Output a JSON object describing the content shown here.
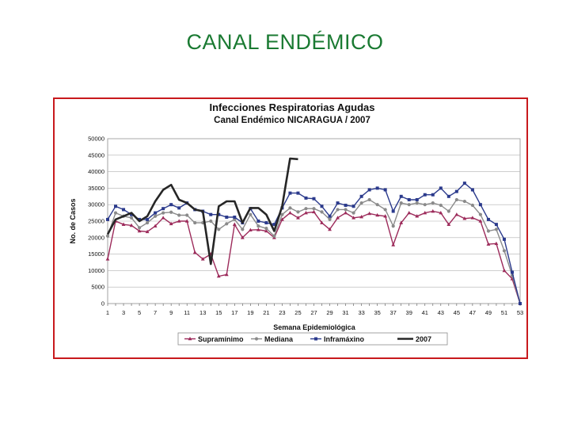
{
  "slide": {
    "title": "CANAL ENDÉMICO"
  },
  "chart_data": {
    "type": "line",
    "title": "Infecciones Respiratorias Agudas",
    "subtitle": "Canal Endémico NICARAGUA / 2007",
    "xlabel": "Semana Epidemiológica",
    "ylabel": "No. de Casos",
    "ylim": [
      0,
      50000
    ],
    "yticks": [
      "0",
      "5000",
      "10000",
      "15000",
      "20000",
      "25000",
      "30000",
      "35000",
      "40000",
      "45000",
      "50000"
    ],
    "xticks": [
      "1",
      "3",
      "5",
      "7",
      "9",
      "11",
      "13",
      "15",
      "17",
      "19",
      "21",
      "23",
      "25",
      "27",
      "29",
      "31",
      "33",
      "35",
      "37",
      "39",
      "41",
      "43",
      "45",
      "47",
      "49",
      "51",
      "53"
    ],
    "grid": true,
    "legend_position": "bottom",
    "series": [
      {
        "name": "Supramínimo",
        "color": "#9c2a5a",
        "marker": "triangle",
        "x": [
          1,
          2,
          3,
          4,
          5,
          6,
          7,
          8,
          9,
          10,
          11,
          12,
          13,
          14,
          15,
          16,
          17,
          18,
          19,
          20,
          21,
          22,
          23,
          24,
          25,
          26,
          27,
          28,
          29,
          30,
          31,
          32,
          33,
          34,
          35,
          36,
          37,
          38,
          39,
          40,
          41,
          42,
          43,
          44,
          45,
          46,
          47,
          48,
          49,
          50,
          51,
          52,
          53
        ],
        "values": [
          13500,
          25000,
          24000,
          23700,
          22000,
          21800,
          23500,
          26000,
          24200,
          25000,
          25000,
          15500,
          13500,
          15000,
          8300,
          8800,
          24000,
          20000,
          22300,
          22400,
          22000,
          20000,
          25500,
          27500,
          26000,
          27500,
          27800,
          24500,
          22500,
          26000,
          27500,
          26000,
          26300,
          27300,
          26800,
          26500,
          17800,
          24500,
          27500,
          26500,
          27500,
          28000,
          27500,
          24000,
          27000,
          25800,
          26000,
          25000,
          18000,
          18200,
          10000,
          7500,
          0
        ]
      },
      {
        "name": "Mediana",
        "color": "#8a8a8a",
        "marker": "circle",
        "x": [
          1,
          2,
          3,
          4,
          5,
          6,
          7,
          8,
          9,
          10,
          11,
          12,
          13,
          14,
          15,
          16,
          17,
          18,
          19,
          20,
          21,
          22,
          23,
          24,
          25,
          26,
          27,
          28,
          29,
          30,
          31,
          32,
          33,
          34,
          35,
          36,
          37,
          38,
          39,
          40,
          41,
          42,
          43,
          44,
          45,
          46,
          47,
          48,
          49,
          50,
          51,
          52,
          53
        ],
        "values": [
          20500,
          27500,
          26500,
          26000,
          23000,
          24500,
          26500,
          27500,
          27700,
          26800,
          26800,
          24500,
          24500,
          25000,
          22500,
          24200,
          25500,
          22500,
          27000,
          23500,
          22800,
          20500,
          27000,
          29000,
          27800,
          28800,
          28800,
          27800,
          25500,
          28500,
          28500,
          27500,
          30500,
          31500,
          30000,
          28500,
          23500,
          30500,
          30000,
          30500,
          30000,
          30500,
          29800,
          28000,
          31500,
          31000,
          29800,
          27000,
          22000,
          22500,
          16000,
          8500,
          0
        ]
      },
      {
        "name": "Inframáxino",
        "color": "#2b3a8c",
        "marker": "square",
        "x": [
          1,
          2,
          3,
          4,
          5,
          6,
          7,
          8,
          9,
          10,
          11,
          12,
          13,
          14,
          15,
          16,
          17,
          18,
          19,
          20,
          21,
          22,
          23,
          24,
          25,
          26,
          27,
          28,
          29,
          30,
          31,
          32,
          33,
          34,
          35,
          36,
          37,
          38,
          39,
          40,
          41,
          42,
          43,
          44,
          45,
          46,
          47,
          48,
          49,
          50,
          51,
          52,
          53
        ],
        "values": [
          25500,
          29500,
          28500,
          27000,
          25500,
          25500,
          27500,
          28800,
          30000,
          29000,
          30500,
          28500,
          28000,
          27000,
          27000,
          26200,
          26200,
          24500,
          28800,
          25000,
          24500,
          24000,
          29000,
          33500,
          33500,
          32000,
          31800,
          29500,
          26500,
          30500,
          29800,
          29500,
          32500,
          34500,
          35000,
          34500,
          28000,
          32500,
          31500,
          31500,
          33000,
          33000,
          35000,
          32500,
          34000,
          36500,
          34500,
          30000,
          25500,
          24000,
          19500,
          9500,
          0
        ]
      },
      {
        "name": "2007",
        "color": "#262626",
        "marker": "none",
        "x": [
          1,
          2,
          3,
          4,
          5,
          6,
          7,
          8,
          9,
          10,
          11,
          12,
          13,
          14,
          15,
          16,
          17,
          18,
          19,
          20,
          21,
          22,
          23,
          24,
          25
        ],
        "values": [
          21000,
          25500,
          26500,
          27500,
          25000,
          26500,
          31000,
          34500,
          36000,
          31500,
          30500,
          28500,
          28000,
          12000,
          29500,
          31000,
          31000,
          24500,
          29000,
          29000,
          27000,
          22000,
          29500,
          44000,
          43800
        ]
      }
    ]
  }
}
